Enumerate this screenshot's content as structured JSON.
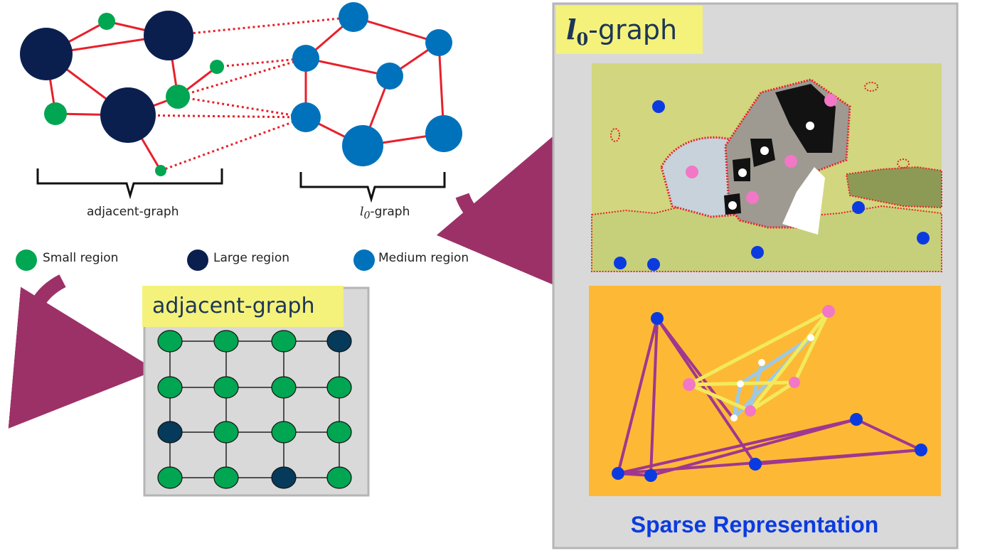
{
  "colors": {
    "small_region": "#00a651",
    "large_region": "#0b1f4f",
    "medium_region": "#0072bc",
    "edge_red": "#e8202a",
    "panel_gray": "#d9d9d9",
    "title_yellow": "#f4f27a",
    "blue_dot": "#0b3be0",
    "pink_dot": "#f277c6",
    "yellow_edge": "#f2ea5c",
    "purple_edge": "#a0378f",
    "light_blue_edge": "#9cc9e6",
    "orange_bg": "#fdb935",
    "image_bg": "#d2d67e",
    "arrow_magenta": "#9c3168",
    "sparse_text": "#0b3be0"
  },
  "labels": {
    "l0_title_math": "l",
    "l0_title_sub": "0",
    "l0_title_suffix": "-graph",
    "adjacent_title": "adjacent-graph",
    "caption_adjacent": "adjacent-graph",
    "caption_l0_math": "l",
    "caption_l0_sub": "0",
    "caption_l0_suffix": "-graph",
    "sparse_representation": "Sparse Representation"
  },
  "legend": [
    {
      "label": "Small region",
      "color": "#00a651"
    },
    {
      "label": "Large region",
      "color": "#0b1f4f"
    },
    {
      "label": "Medium region",
      "color": "#0072bc"
    }
  ],
  "adjacent_grid": {
    "rows": 4,
    "cols": 4,
    "cells": [
      [
        "small",
        "small",
        "small",
        "large"
      ],
      [
        "small",
        "small",
        "small",
        "small"
      ],
      [
        "large",
        "small",
        "small",
        "small"
      ],
      [
        "small",
        "small",
        "large",
        "small"
      ]
    ]
  },
  "icons": [
    "curved-arrow-icon",
    "curved-arrow-icon"
  ]
}
